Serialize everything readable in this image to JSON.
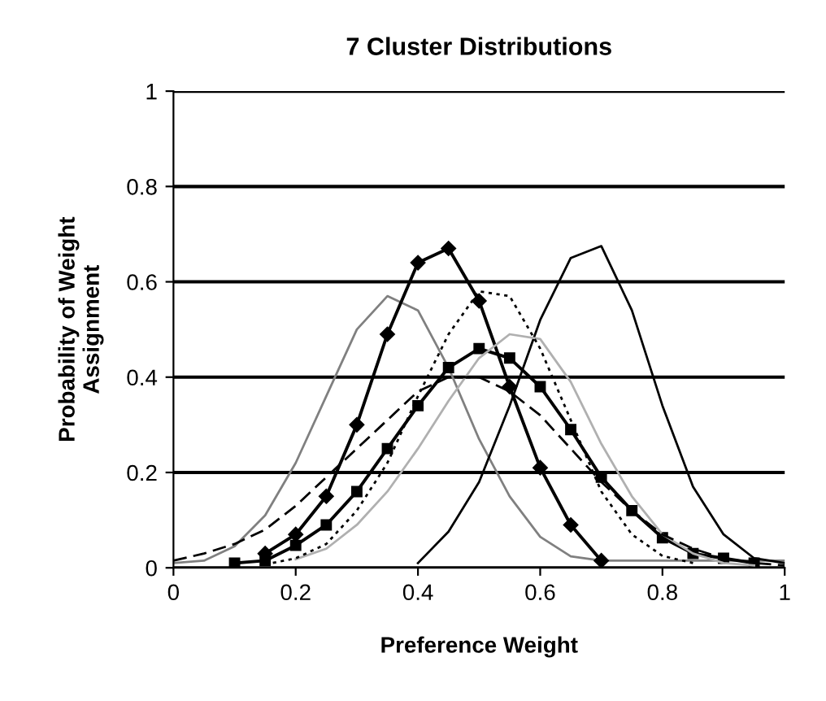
{
  "chart_data": {
    "type": "line",
    "title": "7 Cluster Distributions",
    "xlabel": "Preference Weight",
    "ylabel": "Probability of Weight\nAssignment",
    "x": [
      0,
      0.05,
      0.1,
      0.15,
      0.2,
      0.25,
      0.3,
      0.35,
      0.4,
      0.45,
      0.5,
      0.55,
      0.6,
      0.65,
      0.7,
      0.75,
      0.8,
      0.85,
      0.9,
      0.95,
      1
    ],
    "series": [
      {
        "color": "#808080",
        "line_style": "solid",
        "marker": "none",
        "values": [
          0.01,
          0.015,
          0.045,
          0.11,
          0.22,
          0.36,
          0.5,
          0.57,
          0.54,
          0.42,
          0.27,
          0.15,
          0.065,
          0.024,
          0.015,
          0.015,
          0.015,
          0.015,
          0.015,
          0.015,
          0.015
        ]
      },
      {
        "color": "#000000",
        "line_style": "solid",
        "marker": "diamond",
        "values": [
          null,
          null,
          null,
          0.03,
          0.07,
          0.15,
          0.3,
          0.49,
          0.64,
          0.67,
          0.56,
          0.38,
          0.21,
          0.09,
          0.015,
          null,
          null,
          null,
          null,
          null,
          null
        ]
      },
      {
        "color": "#000000",
        "line_style": "solid",
        "marker": "none",
        "values": [
          null,
          null,
          null,
          null,
          null,
          null,
          null,
          null,
          0.01,
          0.076,
          0.18,
          0.34,
          0.52,
          0.65,
          0.675,
          0.54,
          0.34,
          0.17,
          0.07,
          0.02,
          0.01
        ]
      },
      {
        "color": "#000000",
        "line_style": "solid",
        "marker": "square",
        "values": [
          null,
          null,
          0.01,
          0.015,
          0.047,
          0.09,
          0.16,
          0.25,
          0.34,
          0.42,
          0.46,
          0.44,
          0.38,
          0.29,
          0.19,
          0.12,
          0.063,
          0.03,
          0.02,
          0.01,
          null
        ]
      },
      {
        "color": "#b0b0b0",
        "line_style": "solid",
        "marker": "none",
        "values": [
          null,
          null,
          null,
          null,
          0.018,
          0.04,
          0.09,
          0.16,
          0.25,
          0.35,
          0.44,
          0.49,
          0.48,
          0.39,
          0.26,
          0.15,
          0.07,
          0.03,
          0.01,
          0.005,
          null
        ]
      },
      {
        "color": "#000000",
        "line_style": "dotted",
        "marker": "none",
        "values": [
          null,
          null,
          null,
          0.007,
          0.02,
          0.05,
          0.12,
          0.22,
          0.36,
          0.49,
          0.58,
          0.57,
          0.46,
          0.31,
          0.16,
          0.07,
          0.025,
          0.01,
          null,
          null,
          null
        ]
      },
      {
        "color": "#000000",
        "line_style": "dashed",
        "marker": "none",
        "values": [
          0.015,
          0.03,
          0.05,
          0.08,
          0.13,
          0.19,
          0.25,
          0.31,
          0.37,
          0.4,
          0.4,
          0.37,
          0.32,
          0.25,
          0.18,
          0.12,
          0.07,
          0.04,
          0.02,
          0.01,
          0.005
        ]
      }
    ],
    "xlim": [
      0,
      1
    ],
    "ylim": [
      0,
      1
    ],
    "xticks": [
      0,
      0.2,
      0.4,
      0.6,
      0.8,
      1
    ],
    "yticks": [
      0,
      0.2,
      0.4,
      0.6,
      0.8,
      1
    ],
    "grid": "y",
    "legend": false
  }
}
